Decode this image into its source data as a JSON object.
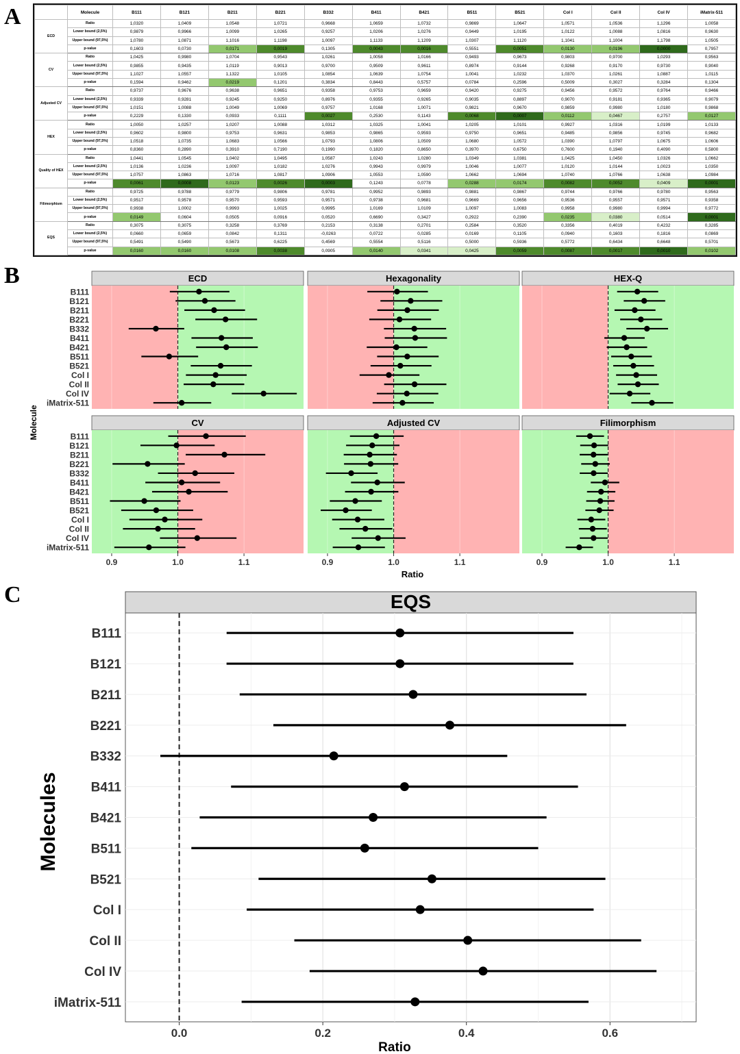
{
  "panel_labels": {
    "a": "A",
    "b": "B",
    "c": "C"
  },
  "colors": {
    "green_bg": "#b5f7b2",
    "red_bg": "#ffb3b3",
    "strip_bg": "#d9d9d9",
    "p_light": "#d8efc8",
    "p_mid": "#93c86f",
    "p_dark": "#4e8a2c",
    "p_darkest": "#2f6a1c"
  },
  "table": {
    "header_label": "Molecule",
    "columns": [
      "B111",
      "B121",
      "B211",
      "B221",
      "B332",
      "B411",
      "B421",
      "B511",
      "B521",
      "Col I",
      "Col II",
      "Col IV",
      "iMatrix-511"
    ],
    "stat_labels": [
      "Ratio",
      "Lower bound (2,5%)",
      "Upper bound (97,5%)",
      "p-value"
    ],
    "groups": [
      {
        "metric": "ECD",
        "rows": [
          [
            "1,0320",
            "1,0409",
            "1,0548",
            "1,0721",
            "0,9668",
            "1,0659",
            "1,0732",
            "0,9869",
            "1,0647",
            "1,0571",
            "1,0536",
            "1,1296",
            "1,0058"
          ],
          [
            "0,9879",
            "0,9966",
            "1,0099",
            "1,0265",
            "0,9257",
            "1,0206",
            "1,0276",
            "0,9449",
            "1,0195",
            "1,0122",
            "1,0088",
            "1,0816",
            "0,9630"
          ],
          [
            "1,0780",
            "1,0871",
            "1,1016",
            "1,1198",
            "1,0097",
            "1,1133",
            "1,1209",
            "1,0307",
            "1,1120",
            "1,1041",
            "1,1004",
            "1,1798",
            "1,0505"
          ],
          [
            "0,1603",
            "0,0730",
            "0,0171",
            "0,0019",
            "0,1305",
            "0,0043",
            "0,0016",
            "0,5551",
            "0,0051",
            "0,0130",
            "0,0196",
            "0,0000",
            "0,7957"
          ]
        ]
      },
      {
        "metric": "CV",
        "rows": [
          [
            "1,0425",
            "0,9980",
            "1,0704",
            "0,9543",
            "1,0261",
            "1,0058",
            "1,0166",
            "0,9493",
            "0,9673",
            "0,9803",
            "0,9700",
            "1,0293",
            "0,9563"
          ],
          [
            "0,9855",
            "0,9435",
            "1,0119",
            "0,9013",
            "0,9700",
            "0,9509",
            "0,9611",
            "0,8974",
            "0,9144",
            "0,9268",
            "0,9170",
            "0,9730",
            "0,9040"
          ],
          [
            "1,1027",
            "1,0557",
            "1,1322",
            "1,0105",
            "1,0854",
            "1,0639",
            "1,0754",
            "1,0041",
            "1,0232",
            "1,0370",
            "1,0261",
            "1,0887",
            "1,0115"
          ],
          [
            "0,1594",
            "0,9462",
            "0,0219",
            "0,1201",
            "0,3834",
            "0,8443",
            "0,5757",
            "0,0784",
            "0,2596",
            "0,5009",
            "0,3027",
            "0,3284",
            "0,1304"
          ]
        ]
      },
      {
        "metric": "Adjusted CV",
        "rows": [
          [
            "0,9737",
            "0,9676",
            "0,9638",
            "0,9651",
            "0,9358",
            "0,9753",
            "0,9659",
            "0,9420",
            "0,9275",
            "0,9456",
            "0,9572",
            "0,9764",
            "0,9466"
          ],
          [
            "0,9339",
            "0,9281",
            "0,9245",
            "0,9250",
            "0,8976",
            "0,9355",
            "0,9265",
            "0,9035",
            "0,8897",
            "0,9070",
            "0,9181",
            "0,9365",
            "0,9079"
          ],
          [
            "1,0151",
            "1,0088",
            "1,0049",
            "1,0069",
            "0,9757",
            "1,0168",
            "1,0071",
            "0,9821",
            "0,9670",
            "0,9859",
            "0,9980",
            "1,0180",
            "0,9868"
          ],
          [
            "0,2229",
            "0,1330",
            "0,0933",
            "0,1111",
            "0,0027",
            "0,2530",
            "0,1143",
            "0,0068",
            "0,0007",
            "0,0112",
            "0,0467",
            "0,2757",
            "0,0127"
          ]
        ]
      },
      {
        "metric": "HEX",
        "rows": [
          [
            "1,0050",
            "1,0257",
            "1,0207",
            "1,0088",
            "1,0312",
            "1,0325",
            "1,0041",
            "1,0205",
            "1,0101",
            "0,9927",
            "1,0316",
            "1,0199",
            "1,0133"
          ],
          [
            "0,9602",
            "0,9800",
            "0,9753",
            "0,9631",
            "0,9853",
            "0,9865",
            "0,9593",
            "0,9750",
            "0,9651",
            "0,9485",
            "0,9856",
            "0,9745",
            "0,9682"
          ],
          [
            "1,0518",
            "1,0735",
            "1,0683",
            "1,0566",
            "1,0793",
            "1,0806",
            "1,0509",
            "1,0680",
            "1,0572",
            "1,0390",
            "1,0797",
            "1,0675",
            "1,0606"
          ],
          [
            "0,8360",
            "0,2890",
            "0,3910",
            "0,7190",
            "0,1990",
            "0,1820",
            "0,8650",
            "0,3970",
            "0,6750",
            "0,7600",
            "0,1940",
            "0,4090",
            "0,5800"
          ]
        ]
      },
      {
        "metric": "Quality of HEX",
        "rows": [
          [
            "1,0441",
            "1,0545",
            "1,0402",
            "1,0495",
            "1,0587",
            "1,0243",
            "1,0280",
            "1,0349",
            "1,0381",
            "1,0425",
            "1,0450",
            "1,0326",
            "1,0662"
          ],
          [
            "1,0136",
            "1,0236",
            "1,0097",
            "1,0182",
            "1,0276",
            "0,9943",
            "0,9979",
            "1,0046",
            "1,0077",
            "1,0120",
            "1,0144",
            "1,0023",
            "1,0350"
          ],
          [
            "1,0757",
            "1,0863",
            "1,0716",
            "1,0817",
            "1,0906",
            "1,0553",
            "1,0590",
            "1,0662",
            "1,0694",
            "1,0740",
            "1,0766",
            "1,0638",
            "1,0984"
          ],
          [
            "0,0061",
            "0,0008",
            "0,0123",
            "0,0026",
            "0,0003",
            "0,1243",
            "0,0778",
            "0,0288",
            "0,0174",
            "0,0082",
            "0,0052",
            "0,0409",
            "0,0001"
          ]
        ]
      },
      {
        "metric": "Filimorphism",
        "rows": [
          [
            "0,9725",
            "0,9788",
            "0,9779",
            "0,9806",
            "0,9781",
            "0,9952",
            "0,9893",
            "0,9881",
            "0,9867",
            "0,9744",
            "0,9766",
            "0,9780",
            "0,9563"
          ],
          [
            "0,9517",
            "0,9578",
            "0,9570",
            "0,9593",
            "0,9571",
            "0,9738",
            "0,9681",
            "0,9669",
            "0,9656",
            "0,9536",
            "0,9557",
            "0,9571",
            "0,9358"
          ],
          [
            "0,9938",
            "1,0002",
            "0,9993",
            "1,0025",
            "0,9995",
            "1,0169",
            "1,0109",
            "1,0097",
            "1,0083",
            "0,9958",
            "0,9980",
            "0,9994",
            "0,9772"
          ],
          [
            "0,0149",
            "0,0604",
            "0,0505",
            "0,0916",
            "0,0520",
            "0,6690",
            "0,3427",
            "0,2922",
            "0,2390",
            "0,0235",
            "0,0380",
            "0,0514",
            "0,0001"
          ]
        ]
      },
      {
        "metric": "EQS",
        "rows": [
          [
            "0,3075",
            "0,3075",
            "0,3258",
            "0,3769",
            "0,2153",
            "0,3138",
            "0,2701",
            "0,2584",
            "0,3520",
            "0,3356",
            "0,4019",
            "0,4232",
            "0,3285"
          ],
          [
            "0,0660",
            "0,0659",
            "0,0842",
            "0,1311",
            "-0,0263",
            "0,0722",
            "0,0285",
            "0,0169",
            "0,1105",
            "0,0940",
            "0,1603",
            "0,1816",
            "0,0869"
          ],
          [
            "0,5491",
            "0,5490",
            "0,5673",
            "0,6225",
            "0,4569",
            "0,5554",
            "0,5116",
            "0,5000",
            "0,5936",
            "0,5772",
            "0,6434",
            "0,6648",
            "0,5701"
          ],
          [
            "0,0160",
            "0,0160",
            "0,0108",
            "0,0038",
            "0,0905",
            "0,0140",
            "0,0341",
            "0,0425",
            "0,0059",
            "0,0087",
            "0,0017",
            "0,0010",
            "0,0102"
          ]
        ]
      }
    ]
  },
  "chart_data": [
    {
      "type": "forest",
      "panel": "B",
      "ylabel": "Molecule",
      "xlabel": "Ratio",
      "xlim": [
        0.87,
        1.19
      ],
      "xticks": [
        0.9,
        1.0,
        1.1
      ],
      "xtick_labels": [
        "0.9",
        "1.0",
        "1.1"
      ],
      "reference_line": 1.0,
      "categories": [
        "B111",
        "B121",
        "B211",
        "B221",
        "B332",
        "B411",
        "B421",
        "B511",
        "B521",
        "Col I",
        "Col II",
        "Col IV",
        "iMatrix-511"
      ],
      "facets": [
        {
          "title": "ECD",
          "favorable": "right",
          "ratio": [
            1.032,
            1.0409,
            1.0548,
            1.0721,
            0.9668,
            1.0659,
            1.0732,
            0.9869,
            1.0647,
            1.0571,
            1.0536,
            1.1296,
            1.0058
          ],
          "lower": [
            0.9879,
            0.9966,
            1.0099,
            1.0265,
            0.9257,
            1.0206,
            1.0276,
            0.9449,
            1.0195,
            1.0122,
            1.0088,
            1.0816,
            0.963
          ],
          "upper": [
            1.078,
            1.0871,
            1.1016,
            1.1198,
            1.0097,
            1.1133,
            1.1209,
            1.0307,
            1.112,
            1.1041,
            1.1004,
            1.1798,
            1.0505
          ]
        },
        {
          "title": "Hexagonality",
          "favorable": "right",
          "ratio": [
            1.005,
            1.0257,
            1.0207,
            1.0088,
            1.0312,
            1.0325,
            1.0041,
            1.0205,
            1.0101,
            0.9927,
            1.0316,
            1.0199,
            1.0133
          ],
          "lower": [
            0.9602,
            0.98,
            0.9753,
            0.9631,
            0.9853,
            0.9865,
            0.9593,
            0.975,
            0.9651,
            0.9485,
            0.9856,
            0.9745,
            0.9682
          ],
          "upper": [
            1.0518,
            1.0735,
            1.0683,
            1.0566,
            1.0793,
            1.0806,
            1.0509,
            1.068,
            1.0572,
            1.039,
            1.0797,
            1.0675,
            1.0606
          ]
        },
        {
          "title": "HEX-Q",
          "favorable": "right",
          "ratio": [
            1.0441,
            1.0545,
            1.0402,
            1.0495,
            1.0587,
            1.0243,
            1.028,
            1.0349,
            1.0381,
            1.0425,
            1.045,
            1.0326,
            1.0662
          ],
          "lower": [
            1.0136,
            1.0236,
            1.0097,
            1.0182,
            1.0276,
            0.9943,
            0.9979,
            1.0046,
            1.0077,
            1.012,
            1.0144,
            1.0023,
            1.035
          ],
          "upper": [
            1.0757,
            1.0863,
            1.0716,
            1.0817,
            1.0906,
            1.0553,
            1.059,
            1.0662,
            1.0694,
            1.074,
            1.0766,
            1.0638,
            1.0984
          ]
        },
        {
          "title": "CV",
          "favorable": "left",
          "ratio": [
            1.0425,
            0.998,
            1.0704,
            0.9543,
            1.0261,
            1.0058,
            1.0166,
            0.9493,
            0.9673,
            0.9803,
            0.97,
            1.0293,
            0.9563
          ],
          "lower": [
            0.9855,
            0.9435,
            1.0119,
            0.9013,
            0.97,
            0.9509,
            0.9611,
            0.8974,
            0.9144,
            0.9268,
            0.917,
            0.973,
            0.904
          ],
          "upper": [
            1.1027,
            1.0557,
            1.1322,
            1.0105,
            1.0854,
            1.0639,
            1.0754,
            1.0041,
            1.0232,
            1.037,
            1.0261,
            1.0887,
            1.0115
          ]
        },
        {
          "title": "Adjusted CV",
          "favorable": "left",
          "ratio": [
            0.9737,
            0.9676,
            0.9638,
            0.9651,
            0.9358,
            0.9753,
            0.9659,
            0.942,
            0.9275,
            0.9456,
            0.9572,
            0.9764,
            0.9466
          ],
          "lower": [
            0.9339,
            0.9281,
            0.9245,
            0.925,
            0.8976,
            0.9355,
            0.9265,
            0.9035,
            0.8897,
            0.907,
            0.9181,
            0.9365,
            0.9079
          ],
          "upper": [
            1.0151,
            1.0088,
            1.0049,
            1.0069,
            0.9757,
            1.0168,
            1.0071,
            0.9821,
            0.967,
            0.9859,
            0.998,
            1.018,
            0.9868
          ]
        },
        {
          "title": "Filimorphism",
          "favorable": "left",
          "ratio": [
            0.9725,
            0.9788,
            0.9779,
            0.9806,
            0.9781,
            0.9952,
            0.9893,
            0.9881,
            0.9867,
            0.9744,
            0.9766,
            0.978,
            0.9563
          ],
          "lower": [
            0.9517,
            0.9578,
            0.957,
            0.9593,
            0.9571,
            0.9738,
            0.9681,
            0.9669,
            0.9656,
            0.9536,
            0.9557,
            0.9571,
            0.9358
          ],
          "upper": [
            0.9938,
            1.0002,
            0.9993,
            1.0025,
            0.9995,
            1.0169,
            1.0109,
            1.0097,
            1.0083,
            0.9958,
            0.998,
            0.9994,
            0.9772
          ]
        }
      ]
    },
    {
      "type": "forest",
      "panel": "C",
      "title": "EQS",
      "ylabel": "Molecules",
      "xlabel": "Ratio",
      "xlim": [
        -0.075,
        0.72
      ],
      "xticks": [
        0.0,
        0.2,
        0.4,
        0.6
      ],
      "xtick_labels": [
        "0.0",
        "0.2",
        "0.4",
        "0.6"
      ],
      "reference_line": 0.0,
      "categories": [
        "B111",
        "B121",
        "B211",
        "B221",
        "B332",
        "B411",
        "B421",
        "B511",
        "B521",
        "Col I",
        "Col II",
        "Col IV",
        "iMatrix-511"
      ],
      "ratio": [
        0.3075,
        0.3075,
        0.3258,
        0.3769,
        0.2153,
        0.3138,
        0.2701,
        0.2584,
        0.352,
        0.3356,
        0.4019,
        0.4232,
        0.3285
      ],
      "lower": [
        0.066,
        0.0659,
        0.0842,
        0.1311,
        -0.0263,
        0.0722,
        0.0285,
        0.0169,
        0.1105,
        0.094,
        0.1603,
        0.1816,
        0.0869
      ],
      "upper": [
        0.5491,
        0.549,
        0.5673,
        0.6225,
        0.4569,
        0.5554,
        0.5116,
        0.5,
        0.5936,
        0.5772,
        0.6434,
        0.6648,
        0.5701
      ]
    }
  ]
}
